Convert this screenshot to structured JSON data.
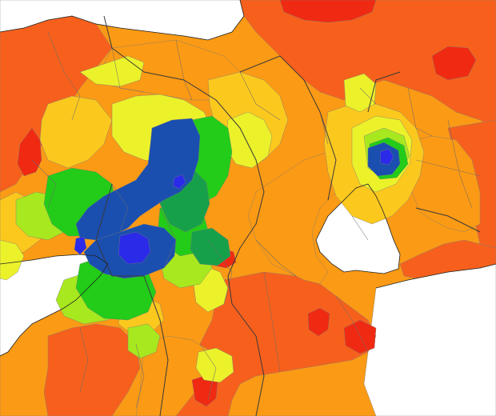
{
  "map": {
    "projection": "choropleth",
    "colors": {
      "background": "#ffffff",
      "water": "#ffffff",
      "red": "#f02a12",
      "orange_red": "#f7601c",
      "orange": "#fb9a14",
      "yellow_orange": "#fbc81e",
      "yellow": "#ecf22a",
      "yellow_green": "#a8e81e",
      "green": "#22cc18",
      "teal_green": "#17a04a",
      "blue": "#1a4fb0",
      "bright_blue": "#2a2ae8"
    }
  }
}
